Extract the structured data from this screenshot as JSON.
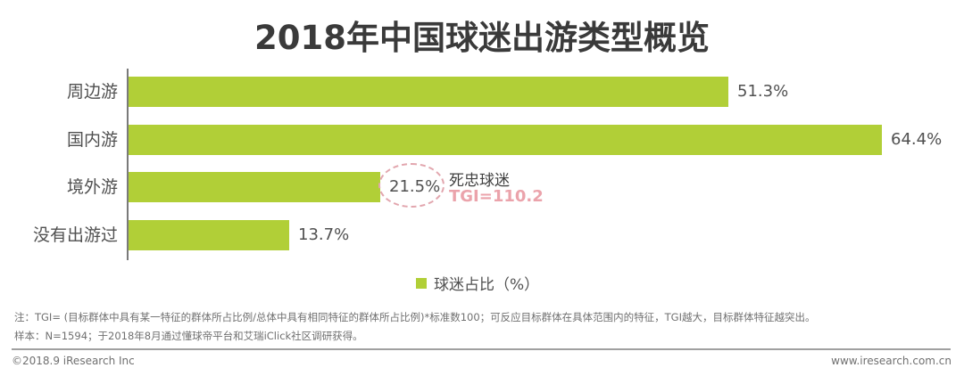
{
  "title": "2018年中国球迷出游类型概览",
  "colors": {
    "bar": "#b1cf37",
    "annotation": "#eba3ab",
    "axis": "#7a7a7a"
  },
  "chart_data": {
    "type": "bar",
    "orientation": "horizontal",
    "title": "2018年中国球迷出游类型概览",
    "categories": [
      "周边游",
      "国内游",
      "境外游",
      "没有出游过"
    ],
    "series": [
      {
        "name": "球迷占比（%）",
        "values": [
          51.3,
          64.4,
          21.5,
          13.7
        ]
      }
    ],
    "value_labels": [
      "51.3%",
      "64.4%",
      "21.5%",
      "13.7%"
    ],
    "xlabel": "",
    "ylabel": "",
    "xlim": [
      0,
      70
    ],
    "grid": false,
    "legend_position": "bottom",
    "annotations": [
      {
        "target": "境外游",
        "text": "死忠球迷",
        "sub_text": "TGI=110.2",
        "style": "dashed-ellipse"
      }
    ]
  },
  "bars": [
    {
      "label": "周边游",
      "value": 51.3,
      "value_text": "51.3%"
    },
    {
      "label": "国内游",
      "value": 64.4,
      "value_text": "64.4%"
    },
    {
      "label": "境外游",
      "value": 21.5,
      "value_text": "21.5%"
    },
    {
      "label": "没有出游过",
      "value": 13.7,
      "value_text": "13.7%"
    }
  ],
  "annotation": {
    "name": "死忠球迷",
    "tgi": "TGI=110.2"
  },
  "legend": {
    "label": "球迷占比（%）"
  },
  "notes": {
    "line1": "注：TGI= (目标群体中具有某一特征的群体所占比例/总体中具有相同特征的群体所占比例)*标准数100；可反应目标群体在具体范围内的特征，TGI越大，目标群体特征越突出。",
    "line2": "样本：N=1594；于2018年8月通过懂球帝平台和艾瑞iClick社区调研获得。"
  },
  "footer": {
    "copyright": "©2018.9 iResearch Inc",
    "website": "www.iresearch.com.cn"
  }
}
